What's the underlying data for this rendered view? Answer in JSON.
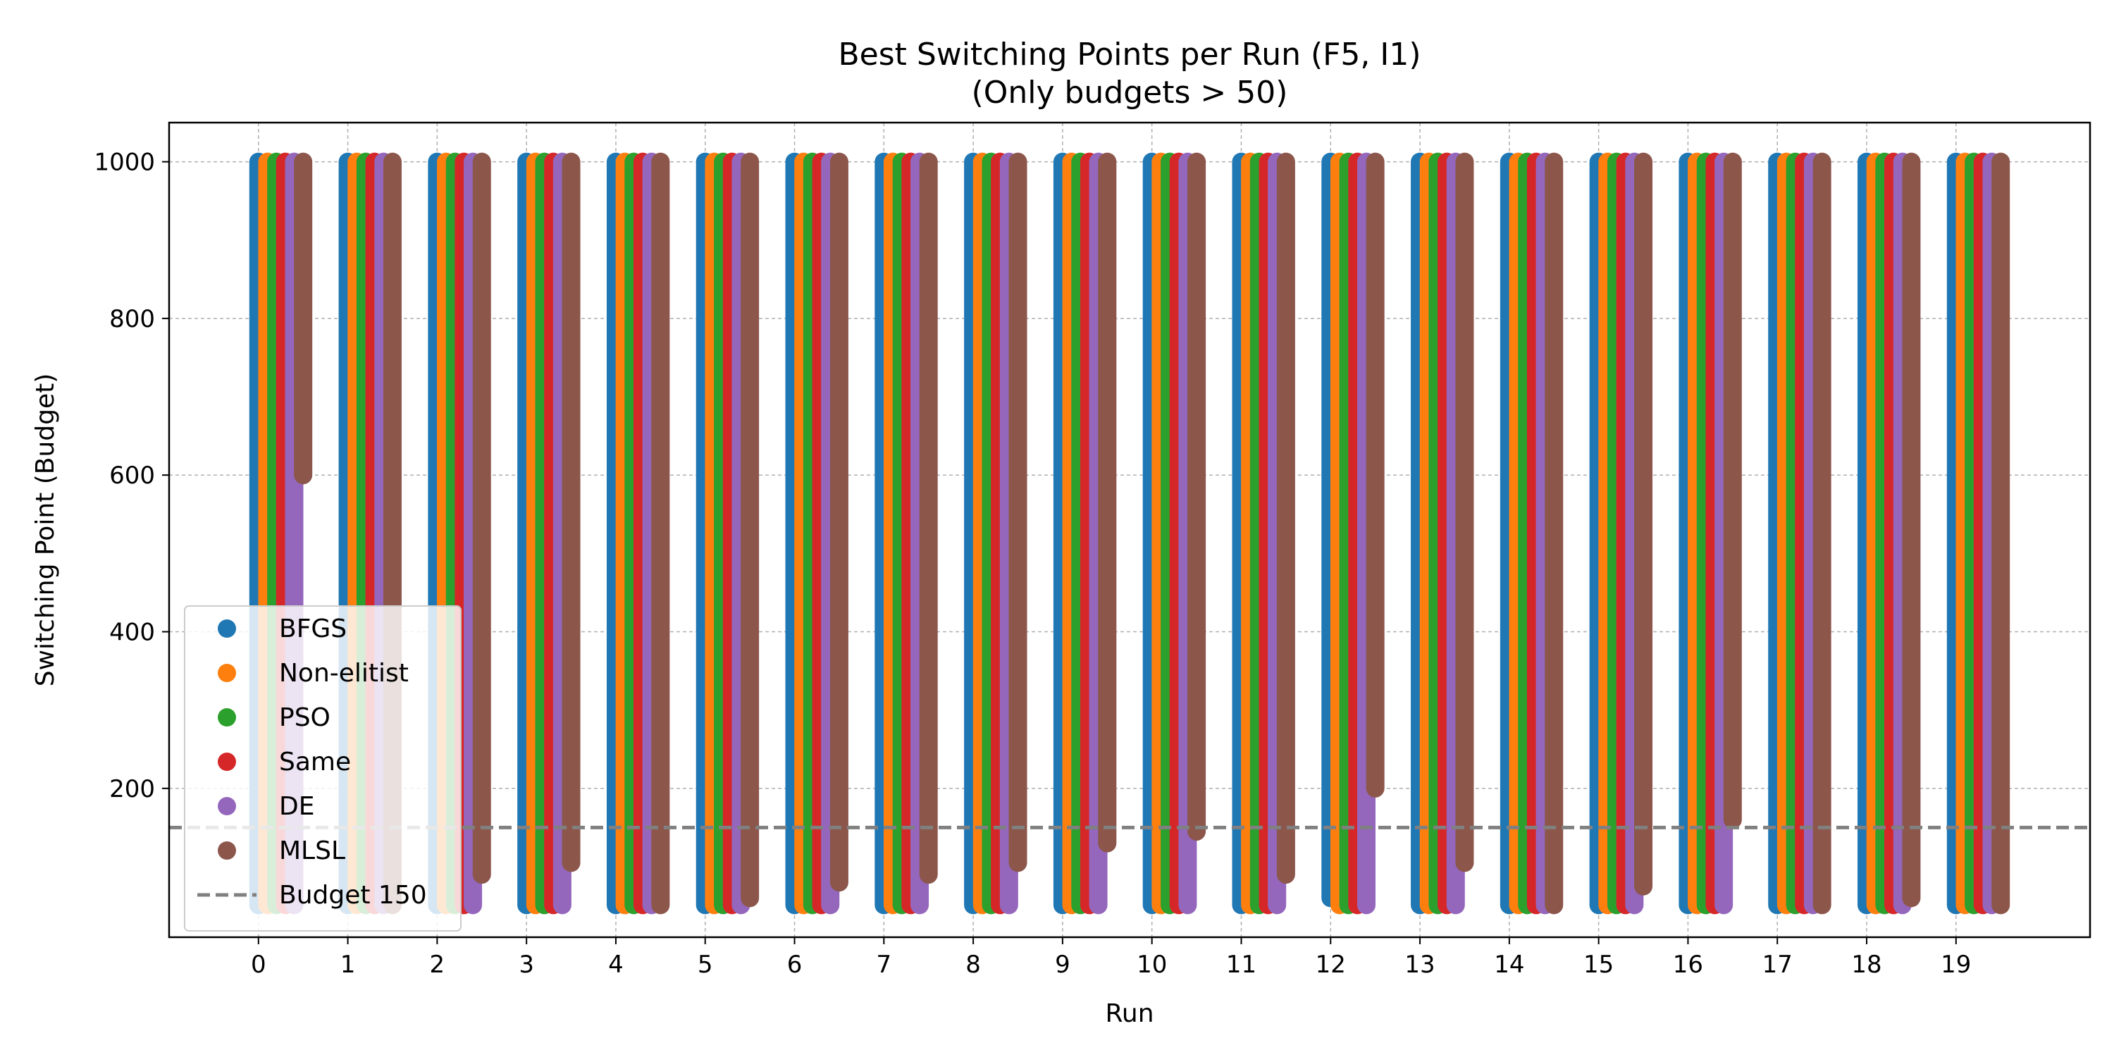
{
  "chart_data": {
    "type": "scatter",
    "title": "Best Switching Points per Run (F5, I1)",
    "subtitle": "(Only budgets > 50)",
    "xlabel": "Run",
    "ylabel": "Switching Point (Budget)",
    "x_ticks": [
      "0",
      "1",
      "2",
      "3",
      "4",
      "5",
      "6",
      "7",
      "8",
      "9",
      "10",
      "11",
      "12",
      "13",
      "14",
      "15",
      "16",
      "17",
      "18",
      "19"
    ],
    "y_ticks": [
      200,
      400,
      600,
      800,
      1000
    ],
    "xlim": [
      -1,
      20.5
    ],
    "ylim": [
      10,
      1050
    ],
    "grid": true,
    "legend_position": "lower-left",
    "y_max": 1000,
    "series": [
      {
        "name": "BFGS",
        "color": "#1f77b4",
        "min_budget": [
          51,
          51,
          51,
          51,
          51,
          51,
          51,
          51,
          51,
          51,
          51,
          51,
          60,
          51,
          51,
          51,
          51,
          51,
          51,
          51
        ]
      },
      {
        "name": "Non-elitist",
        "color": "#ff7f0e",
        "min_budget": [
          51,
          51,
          51,
          51,
          51,
          51,
          51,
          51,
          51,
          51,
          51,
          51,
          51,
          51,
          51,
          51,
          51,
          51,
          51,
          51
        ]
      },
      {
        "name": "PSO",
        "color": "#2ca02c",
        "min_budget": [
          51,
          51,
          51,
          51,
          51,
          51,
          51,
          51,
          51,
          51,
          51,
          51,
          51,
          51,
          51,
          51,
          51,
          51,
          51,
          51
        ]
      },
      {
        "name": "Same",
        "color": "#d62728",
        "min_budget": [
          51,
          51,
          51,
          51,
          51,
          51,
          51,
          51,
          51,
          51,
          51,
          51,
          51,
          51,
          51,
          51,
          51,
          51,
          51,
          51
        ]
      },
      {
        "name": "DE",
        "color": "#9467bd",
        "min_budget": [
          51,
          51,
          51,
          51,
          51,
          51,
          51,
          51,
          51,
          51,
          51,
          51,
          51,
          51,
          51,
          51,
          51,
          51,
          51,
          51
        ]
      },
      {
        "name": "MLSL",
        "color": "#8c564b",
        "min_budget": [
          600,
          51,
          90,
          105,
          51,
          60,
          80,
          90,
          105,
          130,
          145,
          90,
          200,
          105,
          51,
          75,
          160,
          51,
          60,
          51
        ]
      }
    ],
    "reference_line": {
      "name": "Budget 150",
      "y": 150,
      "color": "#808080"
    }
  }
}
